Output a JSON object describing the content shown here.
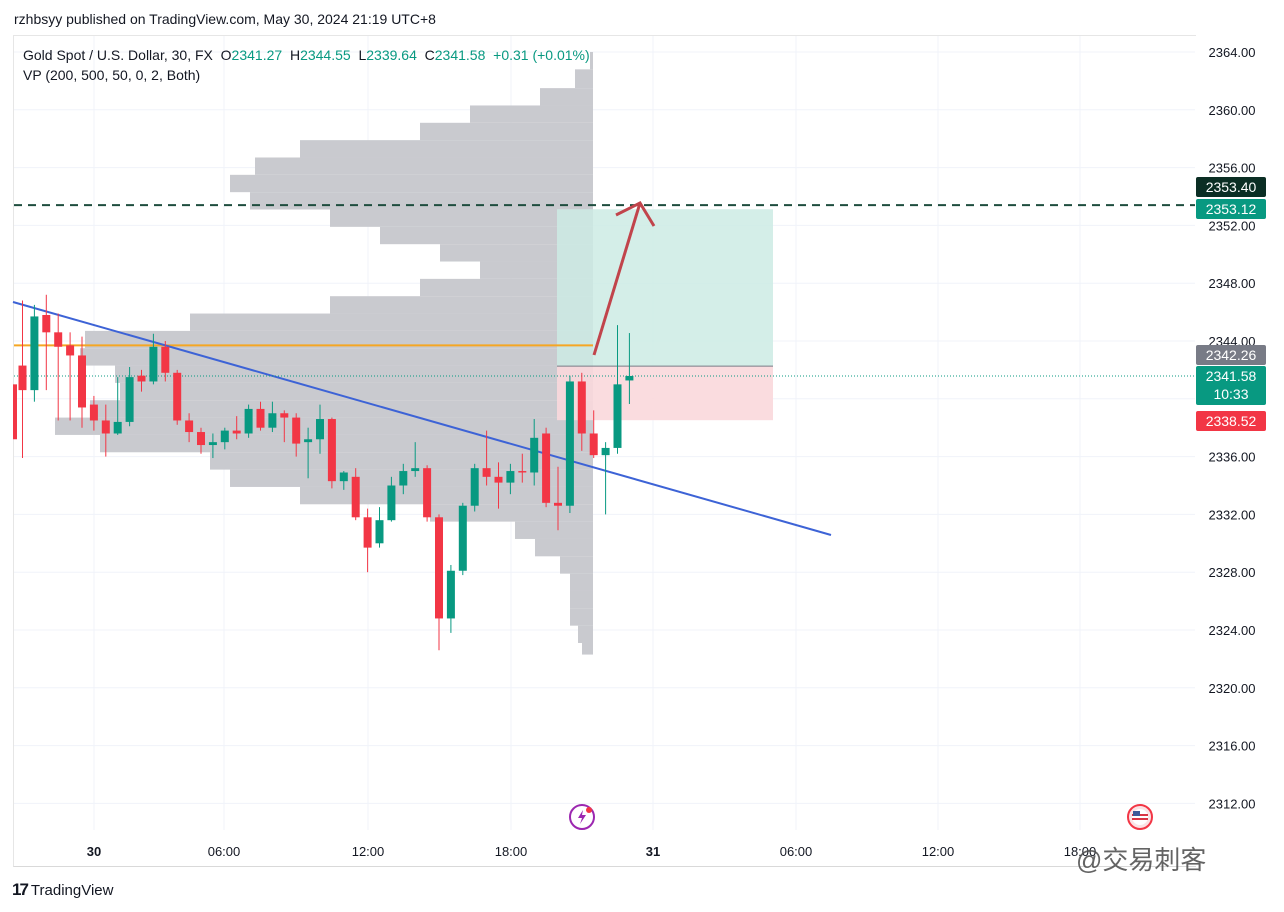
{
  "header": {
    "published_by": "rzhbsyy published on TradingView.com, May 30, 2024 21:19 UTC+8"
  },
  "legend": {
    "symbol": "Gold Spot / U.S. Dollar, 30, FX",
    "open_label": "O",
    "open": "2341.27",
    "high_label": "H",
    "high": "2344.55",
    "low_label": "L",
    "low": "2339.64",
    "close_label": "C",
    "close": "2341.58",
    "change": "+0.31 (+0.01%)",
    "indicator": "VP (200, 500, 50, 0, 2, Both)"
  },
  "price_labels": {
    "resistance": "2353.40",
    "target": "2353.12",
    "vp_poc": "2342.26",
    "last_price": "2341.58",
    "countdown": "10:33",
    "stop": "2338.52"
  },
  "colors": {
    "up": "#089981",
    "down": "#f23645",
    "volume_profile": "#c9cacf",
    "trendline": "#3d63d6",
    "poc_line": "#f5a623",
    "resistance_line": "#1e4d3e",
    "target_zone": "#cdebe4",
    "stop_zone": "#f9d8dc",
    "arrow": "#c1444b"
  },
  "chart_data": {
    "type": "candlestick",
    "ylim": [
      2309,
      2366
    ],
    "y_ticks": [
      "2312.00",
      "2316.00",
      "2320.00",
      "2324.00",
      "2328.00",
      "2332.00",
      "2336.00",
      "2340.00",
      "2344.00",
      "2348.00",
      "2352.00",
      "2356.00",
      "2360.00",
      "2364.00"
    ],
    "x_ticks": [
      "30",
      "06:00",
      "12:00",
      "18:00",
      "31",
      "06:00",
      "12:00",
      "18:00"
    ],
    "candles": [
      {
        "o": 2342.3,
        "h": 2346.8,
        "l": 2335.9,
        "c": 2340.6
      },
      {
        "o": 2340.6,
        "h": 2346.5,
        "l": 2339.8,
        "c": 2345.7
      },
      {
        "o": 2345.8,
        "h": 2347.2,
        "l": 2340.6,
        "c": 2344.6
      },
      {
        "o": 2344.6,
        "h": 2345.9,
        "l": 2338.5,
        "c": 2343.6
      },
      {
        "o": 2343.7,
        "h": 2344.6,
        "l": 2338.5,
        "c": 2343.0
      },
      {
        "o": 2343.0,
        "h": 2344.3,
        "l": 2338.0,
        "c": 2339.4
      },
      {
        "o": 2339.6,
        "h": 2340.2,
        "l": 2337.8,
        "c": 2338.5
      },
      {
        "o": 2338.5,
        "h": 2339.6,
        "l": 2336.0,
        "c": 2337.6
      },
      {
        "o": 2337.6,
        "h": 2341.5,
        "l": 2337.5,
        "c": 2338.4
      },
      {
        "o": 2338.4,
        "h": 2342.2,
        "l": 2338.1,
        "c": 2341.5
      },
      {
        "o": 2341.6,
        "h": 2342.0,
        "l": 2340.5,
        "c": 2341.2
      },
      {
        "o": 2341.2,
        "h": 2344.5,
        "l": 2341.0,
        "c": 2343.6
      },
      {
        "o": 2343.6,
        "h": 2344.0,
        "l": 2341.2,
        "c": 2341.8
      },
      {
        "o": 2341.8,
        "h": 2342.0,
        "l": 2338.2,
        "c": 2338.5
      },
      {
        "o": 2338.5,
        "h": 2339.0,
        "l": 2337.0,
        "c": 2337.7
      },
      {
        "o": 2337.7,
        "h": 2338.0,
        "l": 2336.2,
        "c": 2336.8
      },
      {
        "o": 2336.8,
        "h": 2337.6,
        "l": 2335.9,
        "c": 2337.0
      },
      {
        "o": 2337.0,
        "h": 2338.0,
        "l": 2336.5,
        "c": 2337.8
      },
      {
        "o": 2337.8,
        "h": 2338.8,
        "l": 2337.2,
        "c": 2337.6
      },
      {
        "o": 2337.6,
        "h": 2339.6,
        "l": 2337.3,
        "c": 2339.3
      },
      {
        "o": 2339.3,
        "h": 2339.8,
        "l": 2337.8,
        "c": 2338.0
      },
      {
        "o": 2338.0,
        "h": 2339.8,
        "l": 2337.7,
        "c": 2339.0
      },
      {
        "o": 2339.0,
        "h": 2339.2,
        "l": 2337.0,
        "c": 2338.7
      },
      {
        "o": 2338.7,
        "h": 2339.0,
        "l": 2336.0,
        "c": 2336.9
      },
      {
        "o": 2337.0,
        "h": 2338.0,
        "l": 2334.5,
        "c": 2337.2
      },
      {
        "o": 2337.2,
        "h": 2339.6,
        "l": 2336.2,
        "c": 2338.6
      },
      {
        "o": 2338.6,
        "h": 2338.7,
        "l": 2333.8,
        "c": 2334.3
      },
      {
        "o": 2334.3,
        "h": 2335.0,
        "l": 2333.7,
        "c": 2334.9
      },
      {
        "o": 2334.6,
        "h": 2335.2,
        "l": 2331.6,
        "c": 2331.8
      },
      {
        "o": 2331.8,
        "h": 2332.4,
        "l": 2328.0,
        "c": 2329.7
      },
      {
        "o": 2330.0,
        "h": 2332.5,
        "l": 2329.7,
        "c": 2331.6
      },
      {
        "o": 2331.6,
        "h": 2334.6,
        "l": 2331.5,
        "c": 2334.0
      },
      {
        "o": 2334.0,
        "h": 2335.5,
        "l": 2333.4,
        "c": 2335.0
      },
      {
        "o": 2335.0,
        "h": 2337.0,
        "l": 2334.6,
        "c": 2335.2
      },
      {
        "o": 2335.2,
        "h": 2335.4,
        "l": 2331.5,
        "c": 2331.8
      },
      {
        "o": 2331.8,
        "h": 2332.0,
        "l": 2322.6,
        "c": 2324.8
      },
      {
        "o": 2324.8,
        "h": 2328.5,
        "l": 2323.8,
        "c": 2328.1
      },
      {
        "o": 2328.1,
        "h": 2332.8,
        "l": 2327.8,
        "c": 2332.6
      },
      {
        "o": 2332.6,
        "h": 2335.5,
        "l": 2332.2,
        "c": 2335.2
      },
      {
        "o": 2335.2,
        "h": 2337.8,
        "l": 2334.0,
        "c": 2334.6
      },
      {
        "o": 2334.6,
        "h": 2335.6,
        "l": 2332.4,
        "c": 2334.2
      },
      {
        "o": 2334.2,
        "h": 2335.5,
        "l": 2333.4,
        "c": 2335.0
      },
      {
        "o": 2335.0,
        "h": 2336.2,
        "l": 2334.2,
        "c": 2334.9
      },
      {
        "o": 2334.9,
        "h": 2338.6,
        "l": 2334.0,
        "c": 2337.3
      },
      {
        "o": 2337.6,
        "h": 2338.0,
        "l": 2332.5,
        "c": 2332.8
      },
      {
        "o": 2332.8,
        "h": 2335.3,
        "l": 2330.9,
        "c": 2332.6
      },
      {
        "o": 2332.6,
        "h": 2341.6,
        "l": 2332.1,
        "c": 2341.2
      },
      {
        "o": 2341.2,
        "h": 2341.8,
        "l": 2336.4,
        "c": 2337.6
      },
      {
        "o": 2337.6,
        "h": 2339.2,
        "l": 2335.9,
        "c": 2336.1
      },
      {
        "o": 2336.1,
        "h": 2337.0,
        "l": 2332.0,
        "c": 2336.6
      },
      {
        "o": 2336.6,
        "h": 2345.1,
        "l": 2336.2,
        "c": 2341.0
      },
      {
        "o": 2341.27,
        "h": 2344.55,
        "l": 2339.64,
        "c": 2341.58
      }
    ]
  }
}
